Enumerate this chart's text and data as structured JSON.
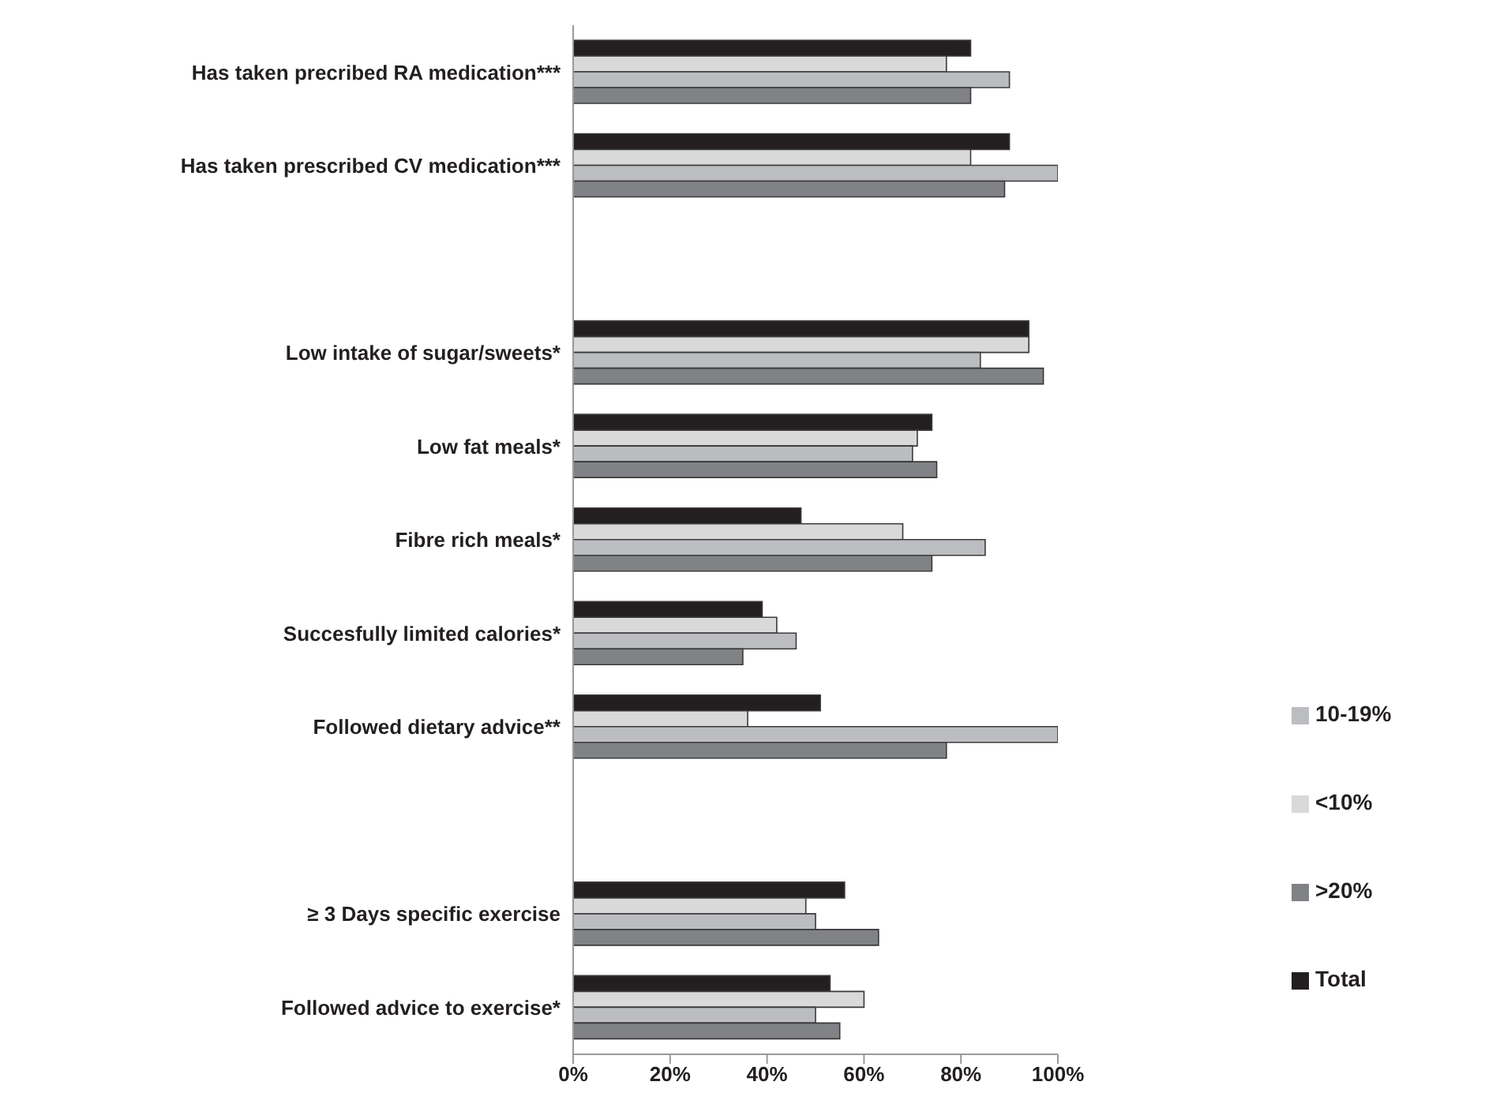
{
  "chart_data": {
    "type": "bar",
    "orientation": "horizontal",
    "categories": [
      "Has taken precribed RA medication***",
      "Has taken prescribed CV medication***",
      null,
      "Low intake of sugar/sweets*",
      "Low fat meals*",
      "Fibre rich meals*",
      "Succesfully limited calories*",
      "Followed dietary advice**",
      null,
      "≥ 3 Days specific exercise",
      "Followed advice to exercise*"
    ],
    "series": [
      {
        "name": "Total",
        "color": "#231f20",
        "values": [
          82,
          90,
          null,
          94,
          74,
          47,
          39,
          51,
          null,
          56,
          53
        ]
      },
      {
        "name": "<10%",
        "color": "#d9d9d9",
        "values": [
          77,
          82,
          null,
          94,
          71,
          68,
          42,
          36,
          null,
          48,
          60
        ]
      },
      {
        "name": "10-19%",
        "color": "#bcbdc0",
        "values": [
          90,
          100,
          null,
          84,
          70,
          85,
          46,
          100,
          null,
          50,
          50
        ]
      },
      {
        "name": ">20%",
        "color": "#808285",
        "values": [
          82,
          89,
          null,
          97,
          75,
          74,
          35,
          77,
          null,
          63,
          55
        ]
      }
    ],
    "xlim": [
      0,
      100
    ],
    "xticks": [
      {
        "value": 0,
        "label": "0%"
      },
      {
        "value": 20,
        "label": "20%"
      },
      {
        "value": 40,
        "label": "40%"
      },
      {
        "value": 60,
        "label": "60%"
      },
      {
        "value": 80,
        "label": "80%"
      },
      {
        "value": 100,
        "label": "100%"
      }
    ],
    "legend": "bottom right",
    "grid": false
  }
}
